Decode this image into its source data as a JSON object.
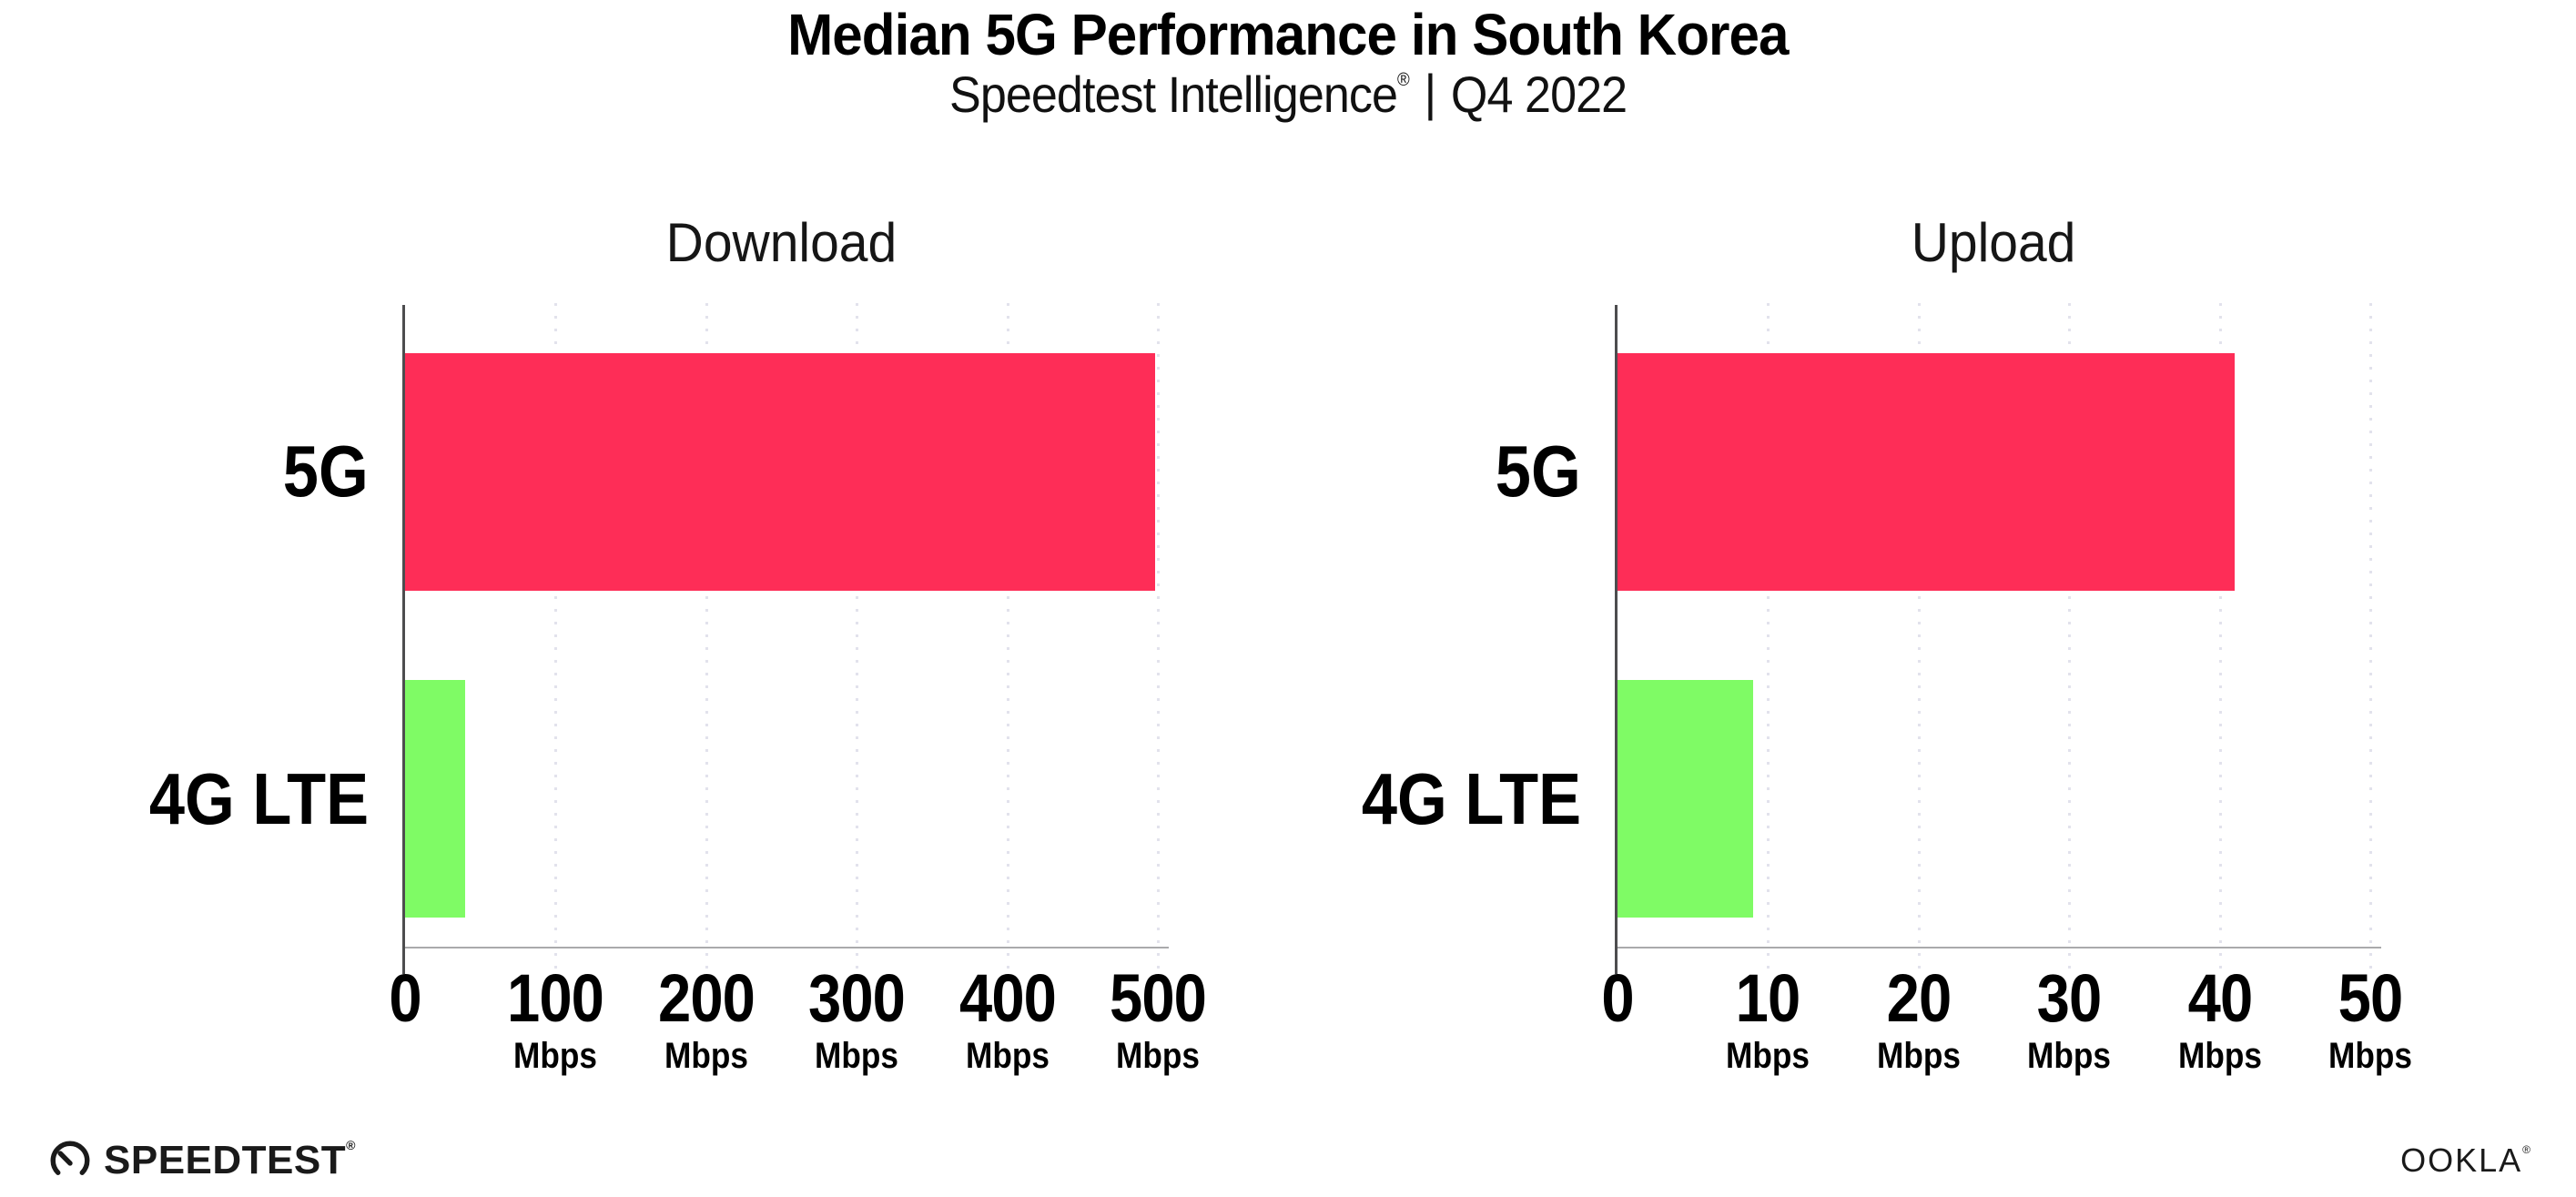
{
  "header": {
    "title": "Median 5G Performance in South Korea",
    "subtitle_brand": "Speedtest Intelligence",
    "subtitle_reg": "®",
    "subtitle_sep": "|",
    "subtitle_period": "Q4 2022"
  },
  "chart_data": [
    {
      "type": "bar",
      "orientation": "horizontal",
      "title": "Download",
      "categories": [
        "5G",
        "4G LTE"
      ],
      "values": [
        498,
        40
      ],
      "value_unit": "Mbps",
      "xlim": [
        0,
        500
      ],
      "xticks": [
        0,
        100,
        200,
        300,
        400,
        500
      ],
      "xtick_unit": "Mbps",
      "bar_colors": [
        "#FE2D57",
        "#7FFB65"
      ],
      "grid": "vertical-dotted",
      "legend": "none"
    },
    {
      "type": "bar",
      "orientation": "horizontal",
      "title": "Upload",
      "categories": [
        "5G",
        "4G LTE"
      ],
      "values": [
        41,
        9
      ],
      "value_unit": "Mbps",
      "xlim": [
        0,
        50
      ],
      "xticks": [
        0,
        10,
        20,
        30,
        40,
        50
      ],
      "xtick_unit": "Mbps",
      "bar_colors": [
        "#FE2D57",
        "#7FFB65"
      ],
      "grid": "vertical-dotted",
      "legend": "none"
    }
  ],
  "footer": {
    "speedtest_label": "SPEEDTEST",
    "speedtest_reg": "®",
    "ookla_label": "OOKLA",
    "ookla_reg": "®"
  },
  "colors": {
    "bar_5g": "#FE2D57",
    "bar_4g_lte": "#7FFB65",
    "text": "#000000",
    "y_axis_line": "#4d4d4f",
    "x_axis_line": "#aaaaac",
    "gridline_dots": "#e2e2ec",
    "background": "#ffffff"
  }
}
